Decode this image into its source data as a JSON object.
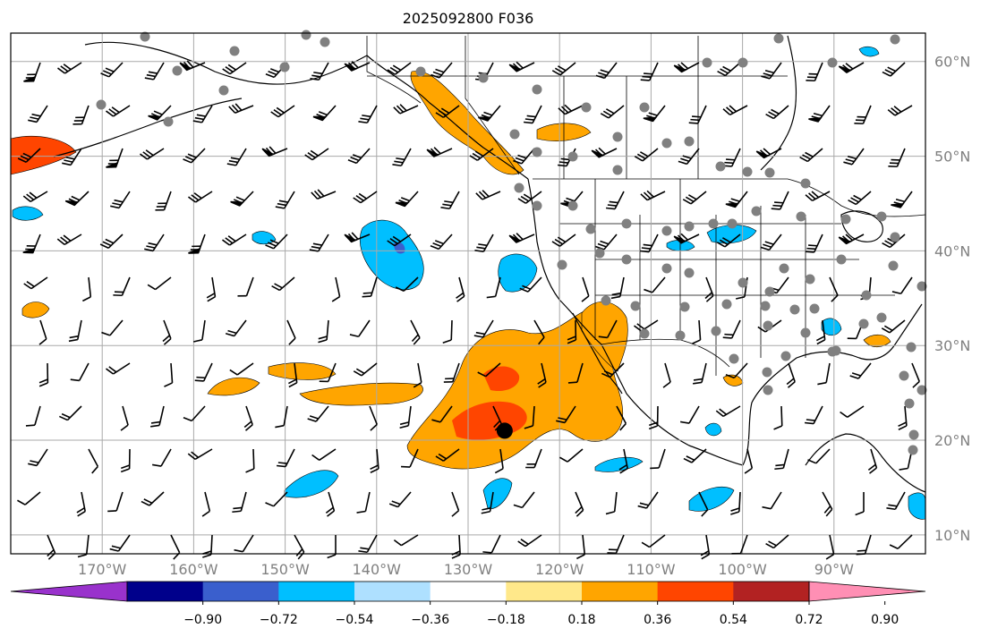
{
  "title": "2025092800 F036",
  "map": {
    "lon_labels": [
      "170°W",
      "160°W",
      "150°W",
      "140°W",
      "130°W",
      "120°W",
      "110°W",
      "100°W",
      "90°W"
    ],
    "lat_labels": [
      "60°N",
      "50°N",
      "40°N",
      "30°N",
      "20°N",
      "10°N"
    ],
    "lon_values": [
      -170,
      -160,
      -150,
      -140,
      -130,
      -120,
      -110,
      -100,
      -90
    ],
    "lat_values": [
      60,
      50,
      40,
      30,
      20,
      10
    ],
    "extent": {
      "lon_min": -180,
      "lon_max": -80,
      "lat_min": 8,
      "lat_max": 63
    },
    "gridlines": true,
    "station_marker_color": "#808080",
    "center_marker": {
      "lon": -126,
      "lat": 21,
      "color": "#000000"
    }
  },
  "colorbar": {
    "tick_labels": [
      "−0.90",
      "−0.72",
      "−0.54",
      "−0.36",
      "−0.18",
      "0.18",
      "0.36",
      "0.54",
      "0.72",
      "0.90"
    ],
    "colors": [
      "#9932cc",
      "#00008b",
      "#3a5fcd",
      "#00bfff",
      "#aee0ff",
      "#ffffff",
      "#ffe88a",
      "#ffa500",
      "#ff4500",
      "#b22222",
      "#ff8fb4"
    ],
    "extend": "both"
  }
}
